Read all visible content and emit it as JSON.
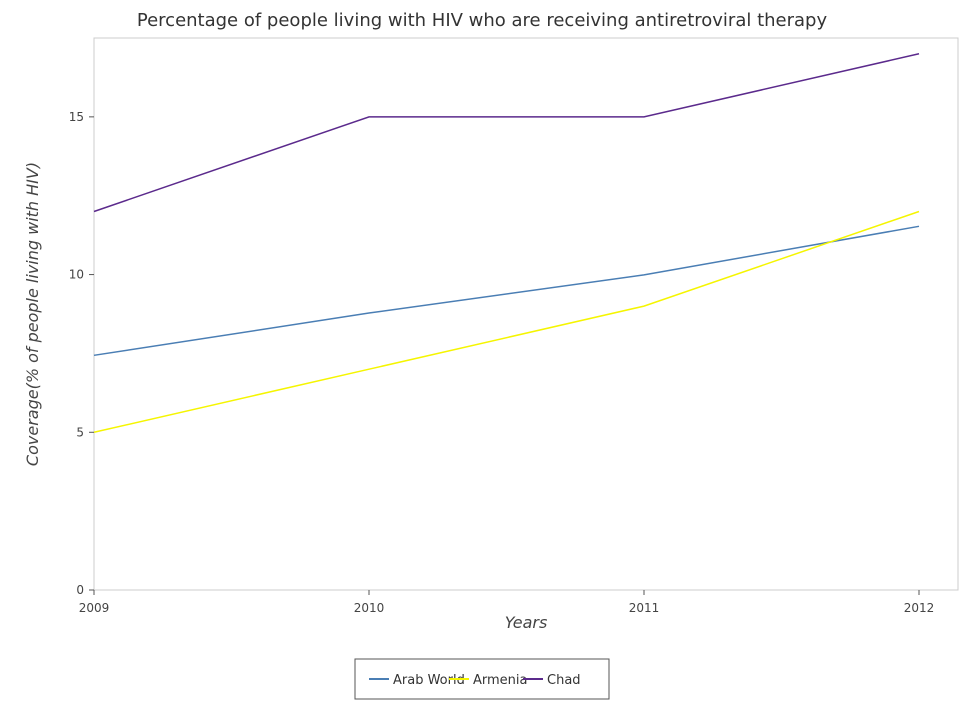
{
  "chart_data": {
    "type": "line",
    "title": "Percentage of people living with HIV who are receiving antiretroviral therapy",
    "xlabel": "Years",
    "ylabel": "Coverage(% of people living with HIV)",
    "categories": [
      "2009",
      "2010",
      "2011",
      "2012"
    ],
    "ylim": [
      0,
      17.5
    ],
    "yticks": [
      0,
      5,
      10,
      15
    ],
    "ytick_labels": [
      "0",
      "5",
      "10",
      "15"
    ],
    "grid": false,
    "legend_position": "bottom-center",
    "series": [
      {
        "name": "Arab World",
        "color": "#4a7eb4",
        "values": [
          7.44,
          8.78,
          9.99,
          11.53
        ]
      },
      {
        "name": "Armenia",
        "color": "#f5f500",
        "values": [
          5,
          7,
          9,
          12
        ]
      },
      {
        "name": "Chad",
        "color": "#5b2a8c",
        "values": [
          12,
          15,
          15,
          17
        ]
      }
    ]
  }
}
